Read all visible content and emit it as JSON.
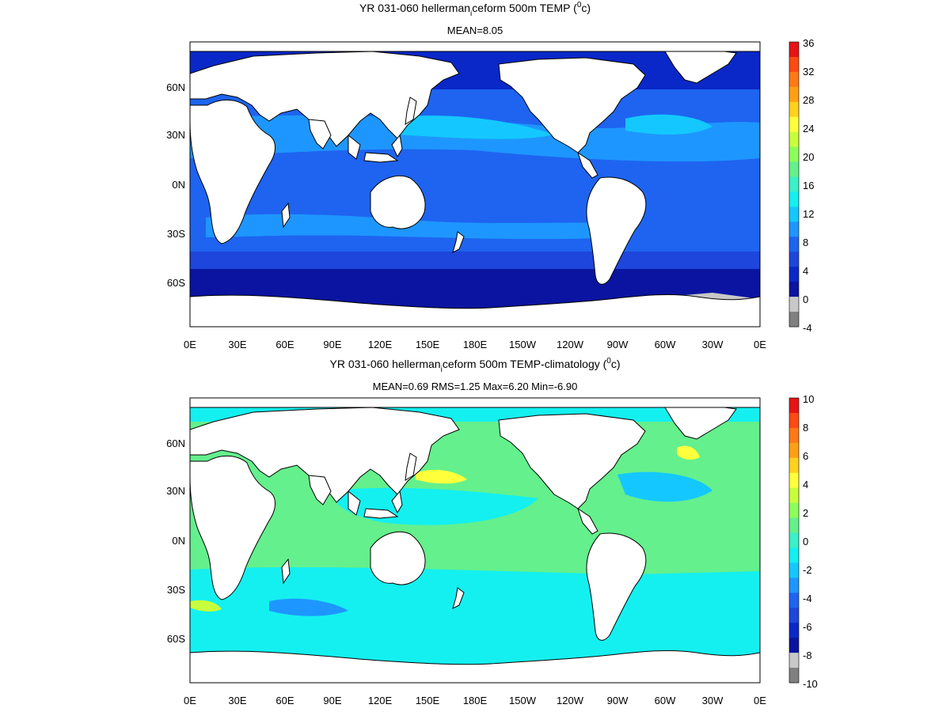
{
  "panels": [
    {
      "title_main": "YR 031-060 hellerman",
      "title_sub": "i",
      "title_rest": "ceform 500m TEMP (",
      "title_sup": "0",
      "title_end": "c)",
      "stats": "MEAN=8.05",
      "lat_labels": [
        "60N",
        "30N",
        "0N",
        "30S",
        "60S"
      ],
      "lon_labels": [
        "0E",
        "30E",
        "60E",
        "90E",
        "120E",
        "150E",
        "180E",
        "150W",
        "120W",
        "90W",
        "60W",
        "30W",
        "0E"
      ],
      "colorbar_ticks": [
        "36",
        "32",
        "28",
        "24",
        "20",
        "16",
        "12",
        "8",
        "4",
        "0",
        "-4"
      ],
      "colors": {
        "ocean_base": "#1e5fe6",
        "deep_south": "#0a1aa8",
        "land": "#ffffff"
      }
    },
    {
      "title_main": "YR 031-060 hellerman",
      "title_sub": "i",
      "title_rest": "ceform 500m TEMP-climatology (",
      "title_sup": "0",
      "title_end": "c)",
      "stats": "MEAN=0.69   RMS=1.25   Max=6.20   Min=-6.90",
      "lat_labels": [
        "60N",
        "30N",
        "0N",
        "30S",
        "60S"
      ],
      "lon_labels": [
        "0E",
        "30E",
        "60E",
        "90E",
        "120E",
        "150E",
        "180E",
        "150W",
        "120W",
        "90W",
        "60W",
        "30W",
        "0E"
      ],
      "colorbar_ticks": [
        "10",
        "8",
        "6",
        "4",
        "2",
        "0",
        "-2",
        "-4",
        "-6",
        "-8",
        "-10"
      ],
      "colors": {
        "ocean_base": "#7dfa8f",
        "cyan": "#14f0f0",
        "land": "#ffffff"
      }
    }
  ],
  "colorbar_colors": [
    "#e61414",
    "#ff4a14",
    "#ff7a14",
    "#ffa014",
    "#ffd21e",
    "#ffff3c",
    "#c8ff3c",
    "#8cff5a",
    "#64f08c",
    "#3cf0c8",
    "#14f0f0",
    "#14c8ff",
    "#1e96ff",
    "#1e64f0",
    "#1e46dc",
    "#0a28c8",
    "#0a14a0",
    "#c8c8c8",
    "#808080"
  ]
}
